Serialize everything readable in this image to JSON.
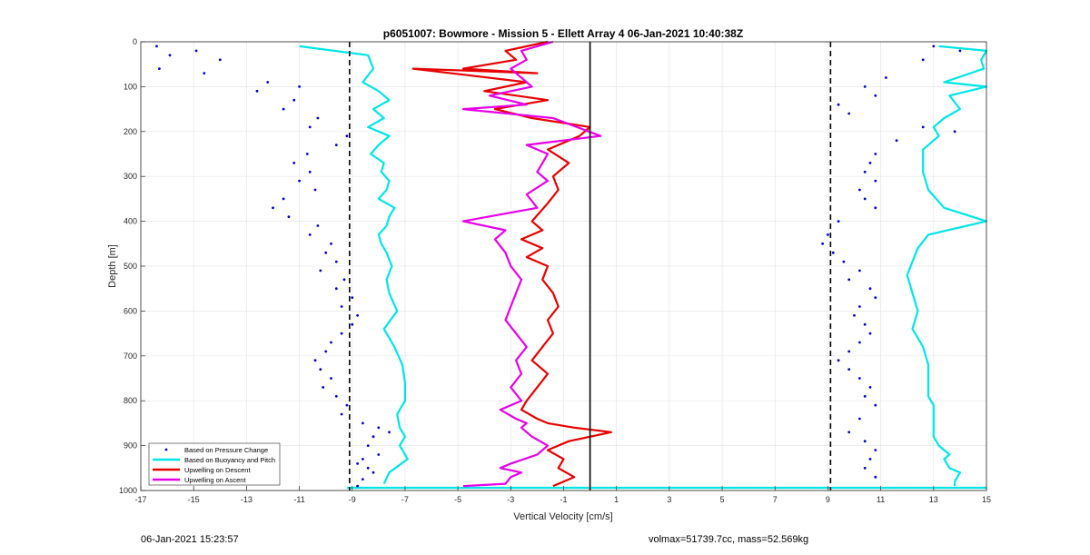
{
  "chart_data": {
    "type": "scatter",
    "title": "p6051007: Bowmore - Mission 5 - Ellett Array 4 06-Jan-2021 10:40:38Z",
    "xlabel": "Vertical Velocity [cm/s]",
    "ylabel": "Depth [m]",
    "xlim": [
      -17,
      15
    ],
    "ylim": [
      1000,
      0
    ],
    "y_reversed": true,
    "grid": true,
    "xticks": [
      -17,
      -15,
      -13,
      -11,
      -9,
      -7,
      -5,
      -3,
      -1,
      1,
      3,
      5,
      7,
      9,
      11,
      13,
      15
    ],
    "yticks": [
      0,
      100,
      200,
      300,
      400,
      500,
      600,
      700,
      800,
      900,
      1000
    ],
    "legend_position": "bottom-left",
    "reference_lines": [
      {
        "style": "dashed",
        "color": "#000000",
        "x": -9.1
      },
      {
        "style": "dashed",
        "color": "#000000",
        "x": 9.1
      },
      {
        "style": "solid",
        "color": "#000000",
        "x": 0
      }
    ],
    "series": [
      {
        "name": "Based on Pressure Change",
        "color": "#0000cc",
        "marker": "dot",
        "segments": [
          {
            "x": [
              -16.4,
              -15.9,
              -16.3,
              -14.9,
              -14.0,
              -14.6,
              -12.2,
              -11.0,
              -12.6,
              -11.2,
              -11.6,
              -10.3,
              -10.6,
              -9.2,
              -9.6,
              -10.7,
              -11.2,
              -10.6,
              -11.0,
              -10.4,
              -11.6,
              -12.0,
              -11.4,
              -10.3,
              -10.6,
              -9.8,
              -10.0,
              -9.6,
              -10.2,
              -9.3,
              -9.6,
              -9.0,
              -9.4,
              -8.8,
              -9.0,
              -9.4,
              -9.8,
              -10.0,
              -10.4,
              -10.2,
              -9.8,
              -10.1,
              -9.6,
              -9.2,
              -9.4,
              -8.6,
              -8.0,
              -7.6,
              -8.2,
              -8.4,
              -8.0,
              -8.6,
              -8.8,
              -8.4,
              -8.2,
              -8.6,
              -8.8
            ],
            "y": [
              10,
              30,
              60,
              20,
              40,
              70,
              90,
              100,
              110,
              130,
              150,
              170,
              190,
              210,
              230,
              250,
              270,
              290,
              310,
              330,
              350,
              370,
              390,
              410,
              430,
              450,
              470,
              490,
              510,
              530,
              550,
              570,
              590,
              610,
              630,
              650,
              670,
              690,
              710,
              730,
              750,
              770,
              790,
              810,
              830,
              850,
              860,
              870,
              880,
              900,
              920,
              930,
              940,
              950,
              960,
              975,
              990
            ]
          },
          {
            "x": [
              13.0,
              14.0,
              12.6,
              11.2,
              10.4,
              10.8,
              9.4,
              9.8,
              12.6,
              13.8,
              11.6,
              10.8,
              10.6,
              10.4,
              10.8,
              10.2,
              10.4,
              10.8,
              9.4,
              9.0,
              8.8,
              9.2,
              9.6,
              10.2,
              9.8,
              10.6,
              10.8,
              10.2,
              10.0,
              10.4,
              10.6,
              10.2,
              9.8,
              9.4,
              9.8,
              10.2,
              10.6,
              10.4,
              10.8,
              10.2,
              9.8,
              10.4,
              10.8,
              10.6,
              10.4,
              10.8
            ],
            "y": [
              10,
              20,
              40,
              80,
              100,
              120,
              140,
              160,
              190,
              200,
              220,
              250,
              270,
              290,
              310,
              330,
              350,
              370,
              400,
              430,
              450,
              470,
              490,
              510,
              530,
              550,
              570,
              590,
              610,
              630,
              650,
              670,
              690,
              710,
              730,
              750,
              770,
              790,
              810,
              840,
              870,
              890,
              910,
              930,
              950,
              970
            ]
          }
        ]
      },
      {
        "name": "Based on Buoyancy and Pitch",
        "color": "#00e5e5",
        "marker": "line",
        "segments": [
          {
            "x": [
              -11.0,
              -8.4,
              -8.2,
              -8.6,
              -8.0,
              -7.6,
              -8.2,
              -7.8,
              -8.4,
              -7.6,
              -8.0,
              -8.3,
              -7.8,
              -7.9,
              -7.6,
              -7.7,
              -8.0,
              -7.4,
              -7.6,
              -7.7,
              -8.0,
              -7.9,
              -7.7,
              -7.5,
              -7.7,
              -7.6,
              -7.3,
              -7.8,
              -7.4,
              -7.1,
              -7.0,
              -7.0,
              -7.3,
              -7.2,
              -7.0,
              -7.2,
              -6.9,
              -7.6,
              -7.8
            ],
            "y": [
              10,
              30,
              60,
              90,
              110,
              130,
              150,
              170,
              190,
              210,
              230,
              250,
              270,
              290,
              310,
              330,
              350,
              370,
              390,
              410,
              430,
              450,
              470,
              500,
              530,
              560,
              600,
              640,
              680,
              720,
              760,
              800,
              830,
              860,
              880,
              900,
              930,
              960,
              985
            ]
          },
          {
            "x": [
              13.2,
              15.0,
              14.8,
              14.9,
              13.4,
              15.0,
              13.6,
              14.0,
              13.4,
              13.0,
              13.2,
              12.6,
              12.6,
              12.6,
              12.8,
              13.4,
              15.0,
              12.8,
              12.4,
              12.2,
              12.0,
              12.2,
              12.4,
              12.2,
              12.6,
              12.8,
              12.8,
              12.8,
              13.0,
              13.0,
              13.0,
              13.0,
              13.2,
              13.4,
              13.6,
              13.4,
              13.6,
              14.0,
              13.8,
              13.8
            ],
            "y": [
              10,
              20,
              40,
              60,
              90,
              100,
              120,
              150,
              170,
              190,
              210,
              240,
              260,
              290,
              330,
              370,
              400,
              430,
              460,
              490,
              520,
              560,
              600,
              640,
              680,
              720,
              760,
              790,
              810,
              840,
              860,
              880,
              900,
              910,
              920,
              930,
              950,
              960,
              980,
              990
            ]
          },
          {
            "x": [
              -9.2,
              -3.0,
              3.0,
              9.2,
              15.0
            ],
            "y": [
              994,
              994,
              994,
              994,
              994
            ]
          }
        ]
      },
      {
        "name": "Upwelling on Descent",
        "color": "#e60000",
        "marker": "line",
        "x": [
          -1.6,
          -3.2,
          -2.8,
          -4.8,
          -2.0,
          -6.7,
          -2.4,
          -4.0,
          -1.6,
          -3.6,
          -2.2,
          0.0,
          -0.4,
          -1.6,
          -0.8,
          -1.4,
          -1.2,
          -1.6,
          -2.2,
          -1.8,
          -2.6,
          -1.8,
          -2.4,
          -1.6,
          -1.8,
          -1.4,
          -1.2,
          -1.6,
          -1.4,
          -1.8,
          -2.2,
          -1.6,
          -2.0,
          -2.4,
          -2.6,
          -2.0,
          -1.6,
          -0.6,
          0.8,
          -0.8,
          -1.6,
          -1.0,
          -1.2,
          -0.6,
          -1.4
        ],
        "y": [
          0,
          20,
          40,
          60,
          70,
          60,
          90,
          110,
          130,
          150,
          170,
          190,
          210,
          240,
          270,
          300,
          330,
          360,
          400,
          420,
          440,
          460,
          480,
          500,
          530,
          560,
          590,
          620,
          650,
          680,
          710,
          740,
          770,
          800,
          820,
          840,
          850,
          860,
          870,
          890,
          910,
          930,
          950,
          970,
          990
        ]
      },
      {
        "name": "Upwelling on Ascent",
        "color": "#e600e6",
        "marker": "line",
        "x": [
          -1.4,
          -2.6,
          -2.4,
          -3.0,
          -2.6,
          -2.2,
          -3.8,
          -2.4,
          -4.8,
          -1.4,
          0.4,
          -2.4,
          -1.6,
          -1.8,
          -2.0,
          -1.6,
          -2.4,
          -2.0,
          -4.8,
          -3.2,
          -3.6,
          -3.2,
          -3.0,
          -2.6,
          -2.8,
          -3.0,
          -3.2,
          -2.8,
          -2.4,
          -2.8,
          -2.6,
          -3.0,
          -2.6,
          -3.4,
          -2.8,
          -2.4,
          -2.6,
          -2.2,
          -1.6,
          -2.0,
          -3.0,
          -3.4,
          -2.6,
          -3.0,
          -3.2,
          -4.8
        ],
        "y": [
          0,
          20,
          40,
          60,
          80,
          100,
          120,
          140,
          150,
          170,
          210,
          230,
          250,
          270,
          290,
          310,
          340,
          370,
          400,
          420,
          440,
          470,
          500,
          530,
          560,
          590,
          620,
          650,
          680,
          710,
          740,
          770,
          800,
          820,
          840,
          850,
          860,
          880,
          900,
          920,
          940,
          950,
          960,
          970,
          985,
          990
        ]
      }
    ]
  },
  "footer": {
    "timestamp": "06-Jan-2021 15:23:57",
    "mass_info": "volmax=51739.7cc, mass=52.569kg"
  }
}
